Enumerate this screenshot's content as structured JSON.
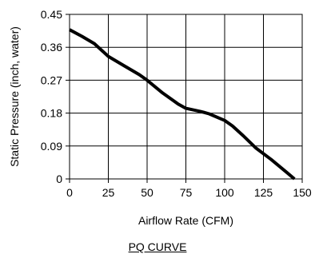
{
  "chart_data": {
    "type": "line",
    "title": "",
    "xlabel": "Airflow Rate (CFM)",
    "ylabel": "Static Pressure (inch, water)",
    "xlim": [
      0,
      150
    ],
    "ylim": [
      0,
      0.45
    ],
    "xticks": [
      "0",
      "25",
      "50",
      "75",
      "100",
      "125",
      "150"
    ],
    "yticks": [
      "0",
      "0.09",
      "0.18",
      "0.27",
      "0.36",
      "0.45"
    ],
    "grid": true,
    "series": [
      {
        "x": [
          0,
          8,
          16,
          25,
          35,
          45,
          50,
          60,
          70,
          75,
          85,
          90,
          100,
          105,
          112,
          120,
          130,
          140,
          145
        ],
        "y": [
          0.408,
          0.39,
          0.37,
          0.335,
          0.31,
          0.285,
          0.27,
          0.235,
          0.205,
          0.193,
          0.184,
          0.178,
          0.16,
          0.145,
          0.118,
          0.085,
          0.053,
          0.018,
          0.0
        ]
      }
    ]
  },
  "caption": "PQ CURVE"
}
